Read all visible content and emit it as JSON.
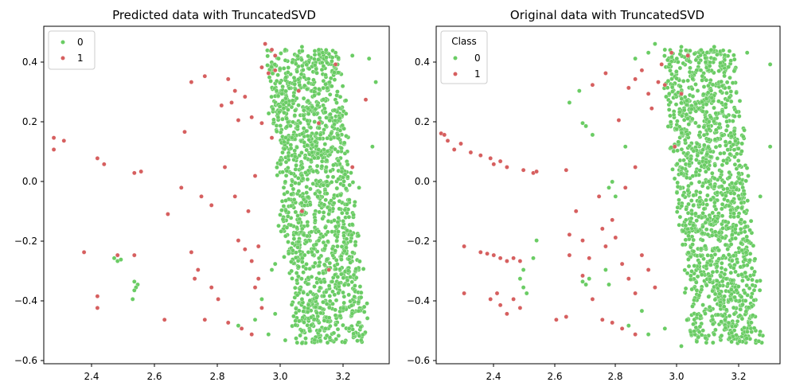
{
  "chart_data": [
    {
      "type": "scatter",
      "title": "Predicted data with TruncatedSVD",
      "xlabel": "",
      "ylabel": "",
      "xlim": [
        2.28,
        3.31
      ],
      "ylim": [
        -0.62,
        0.53
      ],
      "xticks": [
        2.4,
        2.6,
        2.8,
        3.0,
        3.2
      ],
      "yticks": [
        -0.6,
        -0.4,
        -0.2,
        0.0,
        0.2,
        0.4
      ],
      "xtick_labels": [
        "2.4",
        "2.6",
        "2.8",
        "3.0",
        "3.2"
      ],
      "ytick_labels": [
        "−0.6",
        "−0.4",
        "−0.2",
        "0.0",
        "0.2",
        "0.4"
      ],
      "grid": false,
      "legend": {
        "title": "",
        "placement": "upper-left",
        "entries": [
          {
            "label": "0",
            "color": "#6acc64"
          },
          {
            "label": "1",
            "color": "#d65f5f"
          }
        ]
      },
      "series": [
        {
          "name": "0",
          "color": "#6acc64",
          "points": [
            [
              2.49,
              -0.26
            ],
            [
              2.5,
              -0.27
            ],
            [
              2.51,
              -0.265
            ],
            [
              2.55,
              -0.34
            ],
            [
              2.56,
              -0.35
            ],
            [
              2.555,
              -0.36
            ],
            [
              2.55,
              -0.37
            ],
            [
              2.545,
              -0.4
            ],
            [
              2.86,
              -0.49
            ],
            [
              2.91,
              -0.47
            ],
            [
              2.93,
              -0.4
            ],
            [
              2.95,
              -0.52
            ],
            [
              2.97,
              -0.28
            ],
            [
              2.98,
              0.42
            ],
            [
              3.0,
              0.45
            ],
            [
              3.05,
              0.46
            ],
            [
              3.1,
              0.45
            ],
            [
              3.15,
              0.44
            ],
            [
              3.2,
              0.43
            ],
            [
              3.25,
              0.42
            ],
            [
              3.27,
              0.34
            ],
            [
              3.26,
              0.12
            ],
            [
              3.22,
              -0.02
            ],
            [
              3.19,
              -0.12
            ],
            [
              3.14,
              -0.34
            ],
            [
              3.12,
              -0.5
            ],
            [
              3.05,
              -0.55
            ],
            [
              3.0,
              -0.54
            ],
            [
              2.97,
              -0.45
            ],
            [
              2.96,
              -0.3
            ],
            [
              2.98,
              -0.15
            ],
            [
              3.0,
              0.0
            ],
            [
              3.02,
              0.15
            ],
            [
              2.99,
              0.3
            ],
            [
              3.08,
              0.1
            ],
            [
              3.1,
              0.3
            ],
            [
              3.1,
              -0.2
            ],
            [
              3.05,
              -0.4
            ]
          ]
        },
        {
          "name": "1",
          "color": "#d65f5f",
          "points": [
            [
              2.31,
              0.15
            ],
            [
              2.31,
              0.11
            ],
            [
              2.34,
              0.14
            ],
            [
              2.44,
              0.08
            ],
            [
              2.46,
              0.06
            ],
            [
              2.55,
              0.03
            ],
            [
              2.57,
              0.035
            ],
            [
              2.4,
              -0.24
            ],
            [
              2.5,
              -0.25
            ],
            [
              2.55,
              -0.25
            ],
            [
              2.44,
              -0.39
            ],
            [
              2.44,
              -0.43
            ],
            [
              2.64,
              -0.47
            ],
            [
              2.65,
              -0.11
            ],
            [
              2.69,
              -0.02
            ],
            [
              2.7,
              0.17
            ],
            [
              2.72,
              0.34
            ],
            [
              2.76,
              0.36
            ],
            [
              2.75,
              -0.05
            ],
            [
              2.78,
              -0.08
            ],
            [
              2.72,
              -0.24
            ],
            [
              2.74,
              -0.3
            ],
            [
              2.73,
              -0.33
            ],
            [
              2.76,
              -0.47
            ],
            [
              2.78,
              -0.36
            ],
            [
              2.81,
              0.26
            ],
            [
              2.83,
              0.35
            ],
            [
              2.85,
              0.31
            ],
            [
              2.86,
              0.21
            ],
            [
              2.84,
              0.27
            ],
            [
              2.88,
              0.29
            ],
            [
              2.9,
              0.22
            ],
            [
              2.93,
              0.39
            ],
            [
              2.95,
              0.37
            ],
            [
              2.97,
              0.38
            ],
            [
              2.97,
              0.43
            ],
            [
              2.94,
              0.47
            ],
            [
              2.96,
              0.45
            ],
            [
              2.93,
              0.2
            ],
            [
              2.96,
              0.15
            ],
            [
              2.86,
              -0.2
            ],
            [
              2.88,
              -0.23
            ],
            [
              2.9,
              -0.27
            ],
            [
              2.92,
              -0.33
            ],
            [
              2.87,
              -0.5
            ],
            [
              2.9,
              -0.52
            ],
            [
              2.93,
              -0.43
            ],
            [
              2.83,
              -0.48
            ],
            [
              2.85,
              -0.05
            ],
            [
              2.91,
              0.02
            ],
            [
              2.82,
              0.05
            ],
            [
              2.8,
              -0.4
            ],
            [
              2.89,
              -0.1
            ],
            [
              2.91,
              -0.36
            ],
            [
              2.92,
              -0.22
            ],
            [
              3.05,
              -0.1
            ],
            [
              3.1,
              0.2
            ],
            [
              3.13,
              -0.3
            ],
            [
              3.2,
              0.05
            ],
            [
              3.24,
              0.28
            ],
            [
              3.04,
              0.31
            ],
            [
              3.15,
              0.4
            ]
          ]
        }
      ]
    },
    {
      "type": "scatter",
      "title": "Original data with TruncatedSVD",
      "xlabel": "",
      "ylabel": "",
      "xlim": [
        2.255,
        3.3
      ],
      "ylim": [
        -0.62,
        0.53
      ],
      "xticks": [
        2.4,
        2.6,
        2.8,
        3.0,
        3.2
      ],
      "yticks": [
        -0.6,
        -0.4,
        -0.2,
        0.0,
        0.2,
        0.4
      ],
      "xtick_labels": [
        "2.4",
        "2.6",
        "2.8",
        "3.0",
        "3.2"
      ],
      "ytick_labels": [
        "−0.6",
        "−0.4",
        "−0.2",
        "0.0",
        "0.2",
        "0.4"
      ],
      "grid": false,
      "legend": {
        "title": "Class",
        "placement": "upper-left",
        "entries": [
          {
            "label": "0",
            "color": "#6acc64"
          },
          {
            "label": "1",
            "color": "#d65f5f"
          }
        ]
      },
      "series": [
        {
          "name": "0",
          "color": "#6acc64",
          "points": [
            [
              2.66,
              0.27
            ],
            [
              2.69,
              0.31
            ],
            [
              2.7,
              0.2
            ],
            [
              2.71,
              0.19
            ],
            [
              2.73,
              0.16
            ],
            [
              2.71,
              -0.35
            ],
            [
              2.72,
              -0.33
            ],
            [
              2.7,
              -0.34
            ],
            [
              2.52,
              -0.36
            ],
            [
              2.51,
              -0.33
            ],
            [
              2.52,
              -0.3
            ],
            [
              2.53,
              -0.38
            ],
            [
              2.55,
              -0.26
            ],
            [
              2.56,
              -0.2
            ],
            [
              2.78,
              -0.02
            ],
            [
              2.79,
              0.0
            ],
            [
              2.8,
              -0.05
            ],
            [
              2.83,
              0.12
            ],
            [
              2.86,
              0.42
            ],
            [
              2.9,
              0.44
            ],
            [
              2.92,
              0.47
            ],
            [
              2.95,
              0.45
            ],
            [
              2.77,
              -0.3
            ],
            [
              2.78,
              -0.35
            ],
            [
              2.84,
              -0.49
            ],
            [
              2.88,
              -0.44
            ],
            [
              2.9,
              -0.52
            ],
            [
              3.0,
              0.46
            ],
            [
              3.1,
              0.46
            ],
            [
              3.2,
              0.44
            ],
            [
              3.27,
              0.4
            ],
            [
              3.27,
              0.12
            ],
            [
              3.24,
              -0.05
            ],
            [
              3.2,
              -0.2
            ],
            [
              3.15,
              -0.4
            ],
            [
              3.1,
              -0.52
            ],
            [
              3.0,
              -0.56
            ],
            [
              2.95,
              -0.5
            ]
          ]
        },
        {
          "name": "1",
          "color": "#d65f5f",
          "points": [
            [
              2.27,
              0.165
            ],
            [
              2.28,
              0.16
            ],
            [
              2.29,
              0.14
            ],
            [
              2.31,
              0.11
            ],
            [
              2.33,
              0.13
            ],
            [
              2.36,
              0.1
            ],
            [
              2.39,
              0.09
            ],
            [
              2.42,
              0.08
            ],
            [
              2.43,
              0.06
            ],
            [
              2.45,
              0.07
            ],
            [
              2.47,
              0.05
            ],
            [
              2.52,
              0.04
            ],
            [
              2.55,
              0.03
            ],
            [
              2.56,
              0.035
            ],
            [
              2.34,
              -0.22
            ],
            [
              2.39,
              -0.24
            ],
            [
              2.41,
              -0.245
            ],
            [
              2.43,
              -0.25
            ],
            [
              2.45,
              -0.26
            ],
            [
              2.47,
              -0.27
            ],
            [
              2.49,
              -0.26
            ],
            [
              2.51,
              -0.27
            ],
            [
              2.34,
              -0.38
            ],
            [
              2.42,
              -0.4
            ],
            [
              2.44,
              -0.38
            ],
            [
              2.45,
              -0.42
            ],
            [
              2.47,
              -0.45
            ],
            [
              2.49,
              -0.4
            ],
            [
              2.51,
              -0.43
            ],
            [
              2.62,
              -0.47
            ],
            [
              2.65,
              -0.46
            ],
            [
              2.66,
              -0.25
            ],
            [
              2.66,
              -0.18
            ],
            [
              2.68,
              -0.1
            ],
            [
              2.65,
              0.04
            ],
            [
              2.7,
              -0.2
            ],
            [
              2.72,
              -0.26
            ],
            [
              2.7,
              -0.32
            ],
            [
              2.73,
              -0.4
            ],
            [
              2.75,
              -0.05
            ],
            [
              2.76,
              -0.16
            ],
            [
              2.77,
              -0.22
            ],
            [
              2.79,
              -0.13
            ],
            [
              2.8,
              -0.19
            ],
            [
              2.82,
              -0.28
            ],
            [
              2.84,
              -0.33
            ],
            [
              2.86,
              -0.38
            ],
            [
              2.88,
              -0.25
            ],
            [
              2.9,
              -0.3
            ],
            [
              2.92,
              -0.36
            ],
            [
              2.76,
              -0.47
            ],
            [
              2.79,
              -0.48
            ],
            [
              2.82,
              -0.5
            ],
            [
              2.86,
              -0.52
            ],
            [
              2.84,
              0.32
            ],
            [
              2.86,
              0.35
            ],
            [
              2.88,
              0.38
            ],
            [
              2.9,
              0.3
            ],
            [
              2.93,
              0.34
            ],
            [
              2.95,
              0.33
            ],
            [
              2.91,
              0.25
            ],
            [
              2.94,
              0.4
            ],
            [
              2.97,
              0.44
            ],
            [
              3.0,
              0.3
            ],
            [
              2.73,
              0.33
            ],
            [
              2.77,
              0.37
            ],
            [
              2.81,
              0.21
            ],
            [
              2.86,
              0.05
            ],
            [
              2.83,
              -0.02
            ],
            [
              3.02,
              0.43
            ],
            [
              2.98,
              0.12
            ]
          ]
        }
      ]
    }
  ]
}
